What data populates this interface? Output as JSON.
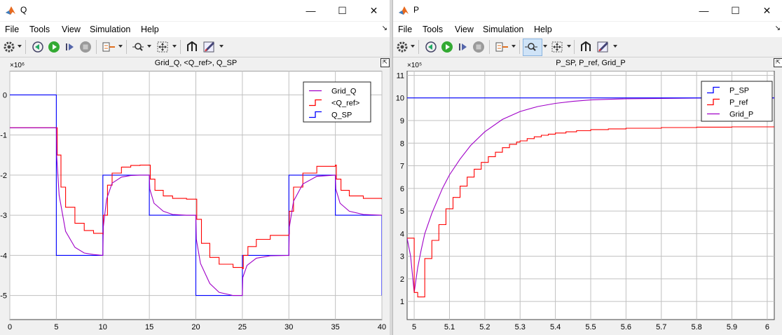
{
  "windows": [
    {
      "id": "q",
      "title": "Q",
      "menu": [
        "File",
        "Tools",
        "View",
        "Simulation",
        "Help"
      ],
      "plot_title": "Grid_Q, <Q_ref>, Q_SP",
      "exponent": "×10⁶",
      "icons": [
        "gear-icon",
        "step-back-icon",
        "run-icon",
        "step-forward-icon",
        "stop-icon",
        "signal-selector-icon",
        "zoom-x-icon",
        "fit-icon",
        "highlight-block-icon",
        "style-icon"
      ]
    },
    {
      "id": "p",
      "title": "P",
      "menu": [
        "File",
        "Tools",
        "View",
        "Simulation",
        "Help"
      ],
      "plot_title": "P_SP, P_ref, Grid_P",
      "exponent": "×10⁵",
      "icons": [
        "gear-icon",
        "step-back-icon",
        "run-icon",
        "step-forward-icon",
        "stop-icon",
        "signal-selector-icon",
        "zoom-x-icon",
        "fit-icon",
        "highlight-block-icon",
        "style-icon"
      ]
    }
  ],
  "colors": {
    "background": "#ffffff",
    "grid": "#c0c0c0",
    "blue": "#0000ff",
    "red": "#ff0000",
    "purple": "#a000c8"
  },
  "chart_data": [
    {
      "type": "line",
      "title": "Grid_Q, <Q_ref>, Q_SP",
      "xlim": [
        0,
        40
      ],
      "ylim": [
        -5.6,
        0.6
      ],
      "y_multiplier": "1e6",
      "x_ticks": [
        0,
        5,
        10,
        15,
        20,
        25,
        30,
        35,
        40
      ],
      "y_ticks": [
        0,
        -1,
        -2,
        -3,
        -4,
        -5
      ],
      "legend_position": "top-right",
      "series": [
        {
          "name": "Grid_Q",
          "color": "#a000c8",
          "style": "line",
          "x": [
            0,
            5,
            5.05,
            5.3,
            6,
            7,
            8,
            9,
            10,
            10.05,
            10.4,
            11,
            12,
            13,
            14,
            15,
            15.05,
            15.5,
            16.5,
            17.5,
            19,
            20,
            20.05,
            20.5,
            21.5,
            22.5,
            24,
            25,
            25.05,
            25.5,
            26.5,
            28,
            30,
            30.05,
            30.5,
            31.5,
            33,
            35,
            35.05,
            35.5,
            36.5,
            38,
            40
          ],
          "y": [
            -0.82,
            -0.82,
            -1.55,
            -2.5,
            -3.4,
            -3.8,
            -3.94,
            -3.98,
            -4.0,
            -3.3,
            -2.6,
            -2.2,
            -2.05,
            -2.01,
            -2.0,
            -2.0,
            -2.35,
            -2.7,
            -2.9,
            -2.98,
            -3.0,
            -3.0,
            -3.6,
            -4.2,
            -4.7,
            -4.92,
            -5.0,
            -5.0,
            -4.55,
            -4.25,
            -4.07,
            -4.01,
            -4.0,
            -3.3,
            -2.65,
            -2.22,
            -2.03,
            -2.0,
            -2.35,
            -2.7,
            -2.9,
            -2.98,
            -3.0
          ]
        },
        {
          "name": "<Q_ref>",
          "color": "#ff0000",
          "style": "step",
          "x": [
            0,
            5,
            5.1,
            5.5,
            6,
            7,
            8,
            9,
            10,
            10.05,
            10.5,
            11,
            12,
            13,
            14,
            15,
            15.1,
            15.6,
            16.5,
            17.5,
            19,
            20,
            20.1,
            20.6,
            21.5,
            22.5,
            24,
            25,
            25.1,
            25.6,
            26.5,
            28,
            30,
            30.05,
            30.5,
            31.5,
            33,
            35,
            35.1,
            35.6,
            36.5,
            38,
            40
          ],
          "y": [
            -0.82,
            -0.82,
            -1.5,
            -2.3,
            -2.8,
            -3.2,
            -3.38,
            -3.45,
            -3.47,
            -3.0,
            -2.25,
            -1.95,
            -1.8,
            -1.76,
            -1.75,
            -1.75,
            -2.1,
            -2.38,
            -2.52,
            -2.58,
            -2.6,
            -2.6,
            -3.1,
            -3.7,
            -4.05,
            -4.22,
            -4.3,
            -4.33,
            -4.0,
            -3.78,
            -3.6,
            -3.5,
            -3.47,
            -2.9,
            -2.3,
            -1.95,
            -1.78,
            -1.75,
            -2.1,
            -2.38,
            -2.52,
            -2.58,
            -2.6
          ]
        },
        {
          "name": "Q_SP",
          "color": "#0000ff",
          "style": "step",
          "x": [
            0,
            5,
            10,
            15,
            20,
            25,
            30,
            35,
            40
          ],
          "y": [
            0,
            -4,
            -2,
            -3,
            -5,
            -4,
            -2,
            -3,
            -5
          ]
        }
      ]
    },
    {
      "type": "line",
      "title": "P_SP, P_ref, Grid_P",
      "xlim": [
        4.98,
        6.02
      ],
      "ylim": [
        0.2,
        11.2
      ],
      "y_multiplier": "1e5",
      "x_ticks": [
        5,
        5.1,
        5.2,
        5.3,
        5.4,
        5.5,
        5.6,
        5.7,
        5.8,
        5.9,
        6
      ],
      "y_ticks": [
        1,
        2,
        3,
        4,
        5,
        6,
        7,
        8,
        9,
        10,
        11
      ],
      "legend_position": "top-right",
      "series": [
        {
          "name": "P_SP",
          "color": "#0000ff",
          "style": "step",
          "x": [
            4.98,
            6.02
          ],
          "y": [
            10,
            10
          ]
        },
        {
          "name": "P_ref",
          "color": "#ff0000",
          "style": "step",
          "x": [
            4.98,
            4.99,
            5.0,
            5.01,
            5.02,
            5.03,
            5.04,
            5.05,
            5.06,
            5.07,
            5.08,
            5.09,
            5.1,
            5.11,
            5.12,
            5.13,
            5.14,
            5.15,
            5.16,
            5.17,
            5.18,
            5.19,
            5.2,
            5.21,
            5.22,
            5.23,
            5.24,
            5.25,
            5.26,
            5.27,
            5.28,
            5.29,
            5.3,
            5.32,
            5.34,
            5.36,
            5.38,
            5.4,
            5.43,
            5.46,
            5.5,
            5.55,
            5.6,
            5.7,
            5.8,
            5.9,
            6.0,
            6.02
          ],
          "y": [
            3.8,
            3.8,
            1.4,
            1.2,
            1.2,
            2.9,
            2.9,
            3.7,
            3.7,
            4.4,
            4.4,
            5.1,
            5.1,
            5.6,
            5.6,
            6.1,
            6.1,
            6.5,
            6.5,
            6.85,
            6.85,
            7.15,
            7.15,
            7.4,
            7.4,
            7.6,
            7.6,
            7.8,
            7.8,
            7.95,
            7.95,
            8.05,
            8.1,
            8.2,
            8.28,
            8.35,
            8.4,
            8.45,
            8.5,
            8.55,
            8.6,
            8.63,
            8.66,
            8.69,
            8.71,
            8.72,
            8.72,
            8.72
          ]
        },
        {
          "name": "Grid_P",
          "color": "#a000c8",
          "style": "line",
          "x": [
            4.98,
            4.99,
            5.0,
            5.01,
            5.02,
            5.03,
            5.05,
            5.08,
            5.1,
            5.13,
            5.16,
            5.2,
            5.25,
            5.3,
            5.35,
            5.4,
            5.45,
            5.5,
            5.55,
            5.6,
            5.7,
            5.8,
            5.9,
            6.02
          ],
          "y": [
            3.8,
            3.0,
            1.4,
            2.5,
            3.3,
            4.0,
            4.9,
            6.0,
            6.6,
            7.3,
            7.9,
            8.5,
            9.05,
            9.4,
            9.62,
            9.76,
            9.85,
            9.91,
            9.94,
            9.96,
            9.98,
            9.99,
            10.0,
            10.0
          ]
        }
      ]
    }
  ]
}
